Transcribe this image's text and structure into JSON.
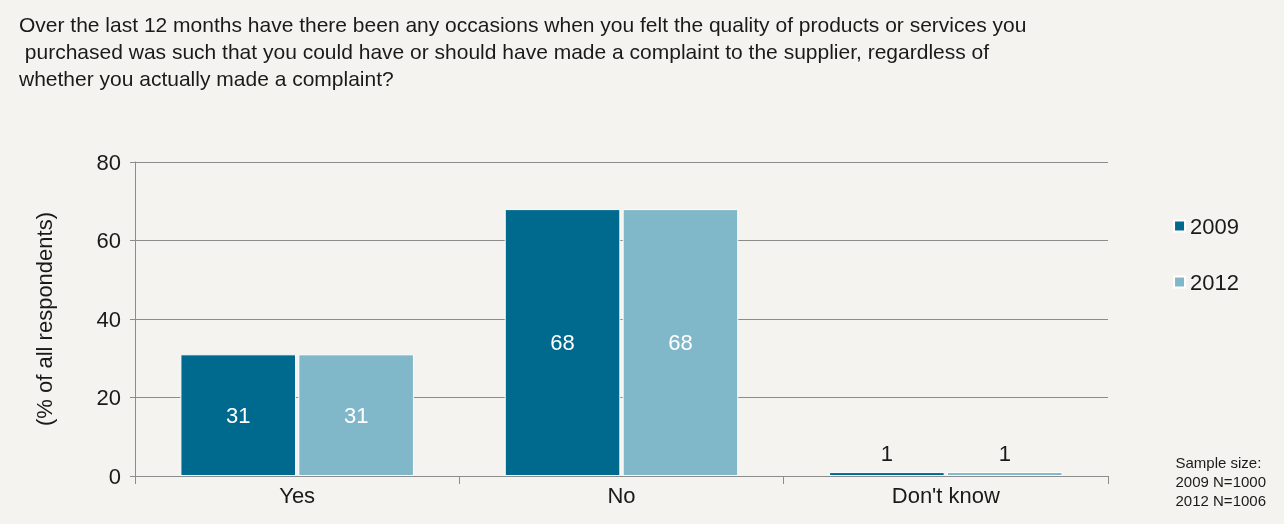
{
  "chart_data": {
    "type": "bar",
    "title": "Over the last 12 months have there been any occasions when you felt the quality of products or services you purchased was such that you could have or should have made a complaint to the supplier, regardless of whether you actually made a complaint?",
    "ylabel": "(% of all respondents)",
    "categories": [
      "Yes",
      "No",
      "Don't know"
    ],
    "series": [
      {
        "name": "2009",
        "color": "#006a8e",
        "values": [
          31,
          68,
          1
        ]
      },
      {
        "name": "2012",
        "color": "#80b8c9",
        "values": [
          31,
          68,
          1
        ]
      }
    ],
    "ylim": [
      0,
      80
    ],
    "yticks": [
      0,
      20,
      40,
      60,
      80
    ],
    "grid": "y",
    "legend": "right",
    "data_labels": true,
    "annotations": [
      "Sample size:\n2009 N=1000\n2012 N=1006"
    ]
  }
}
